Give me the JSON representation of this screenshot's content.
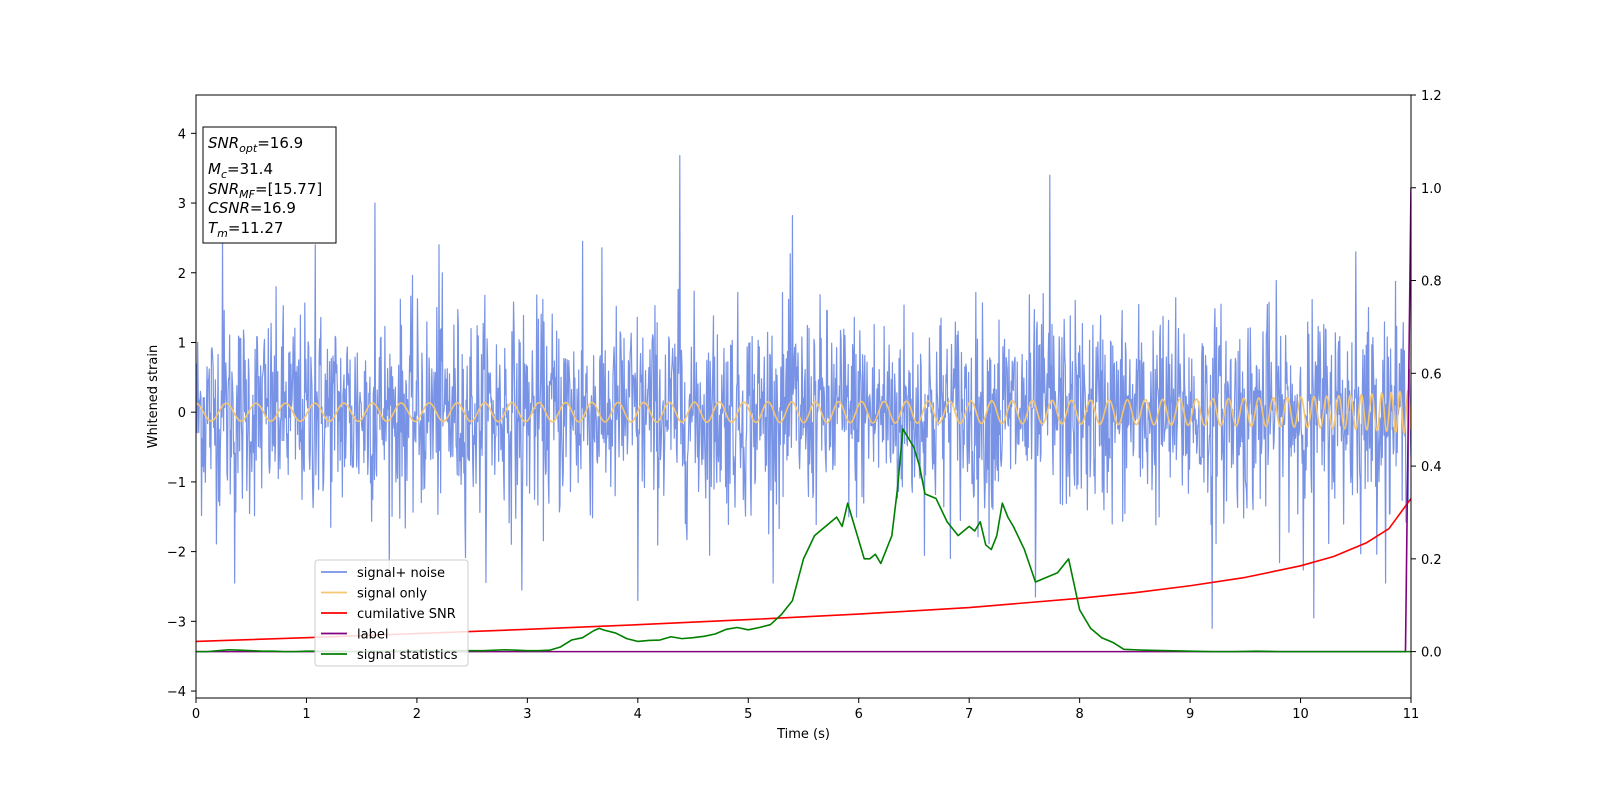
{
  "chart_data": {
    "type": "line",
    "xlabel": "Time (s)",
    "ylabel": "Whitened strain",
    "xlim": [
      0,
      11
    ],
    "ylim": [
      -4.1,
      4.55
    ],
    "y2lim": [
      -0.1,
      1.2
    ],
    "x_ticks": [
      0,
      1,
      2,
      3,
      4,
      5,
      6,
      7,
      8,
      9,
      10,
      11
    ],
    "y_ticks": [
      -4,
      -3,
      -2,
      -1,
      0,
      1,
      2,
      3,
      4
    ],
    "y_tick_labels": [
      "−4",
      "−3",
      "−2",
      "−1",
      "0",
      "1",
      "2",
      "3",
      "4"
    ],
    "y2_ticks": [
      0.0,
      0.2,
      0.4,
      0.6,
      0.8,
      1.0,
      1.2
    ],
    "y2_tick_labels": [
      "0.0",
      "0.2",
      "0.4",
      "0.6",
      "0.8",
      "1.0",
      "1.2"
    ],
    "legend_placement": "lower-left",
    "grid": false,
    "annotation": {
      "lines": [
        {
          "main": "SNR",
          "sub": "opt",
          "rest": "=16.9"
        },
        {
          "main": "M",
          "sub": "c",
          "rest": "=31.4"
        },
        {
          "main": "SNR",
          "sub": "MF",
          "rest": "=[15.77]"
        },
        {
          "main": "CSNR",
          "sub": "",
          "rest": "=16.9"
        },
        {
          "main": "T",
          "sub": "m",
          "rest": "=11.27"
        }
      ]
    },
    "series": [
      {
        "name": "signal+ noise",
        "color": "#7893e6",
        "axis": "left",
        "kind": "noise",
        "sigma": 0.72,
        "points_per_second": 200,
        "spikes": [
          {
            "x": 0.24,
            "y": 2.5
          },
          {
            "x": 1.08,
            "y": 2.4
          },
          {
            "x": 1.62,
            "y": 3.0
          },
          {
            "x": 2.2,
            "y": 2.4
          },
          {
            "x": 3.5,
            "y": 2.45
          },
          {
            "x": 4.38,
            "y": 3.68
          },
          {
            "x": 5.4,
            "y": 2.82
          },
          {
            "x": 7.73,
            "y": 3.4
          },
          {
            "x": 10.5,
            "y": 2.3
          },
          {
            "x": 4.0,
            "y": -2.7
          },
          {
            "x": 9.2,
            "y": -3.1
          },
          {
            "x": 10.12,
            "y": -2.95
          },
          {
            "x": 7.6,
            "y": -2.65
          },
          {
            "x": 0.35,
            "y": -2.45
          },
          {
            "x": 2.95,
            "y": -2.55
          }
        ]
      },
      {
        "name": "signal only",
        "color": "#f5c56f",
        "axis": "left",
        "kind": "chirp",
        "t_merge": 11.27,
        "amplitude_at_end": 0.32
      },
      {
        "name": "cumilative SNR",
        "color": "#ff0000",
        "axis": "right",
        "x": [
          0,
          1,
          2,
          3,
          4,
          5,
          6,
          7,
          8,
          8.5,
          9,
          9.5,
          10,
          10.3,
          10.6,
          10.8,
          11.0
        ],
        "y": [
          0.022,
          0.03,
          0.039,
          0.048,
          0.058,
          0.069,
          0.081,
          0.095,
          0.115,
          0.127,
          0.142,
          0.16,
          0.185,
          0.205,
          0.235,
          0.265,
          0.33
        ]
      },
      {
        "name": "label",
        "color": "#800080",
        "axis": "right",
        "x": [
          0,
          10.95,
          10.98,
          11.0
        ],
        "y": [
          0.0,
          0.0,
          0.6,
          1.0
        ]
      },
      {
        "name": "signal statistics",
        "color": "#008000",
        "axis": "right",
        "x": [
          0,
          0.1,
          0.2,
          0.3,
          0.4,
          0.5,
          0.6,
          0.7,
          0.8,
          0.9,
          1.0,
          1.2,
          1.4,
          1.6,
          1.8,
          2.0,
          2.2,
          2.4,
          2.6,
          2.8,
          2.9,
          3.0,
          3.1,
          3.2,
          3.3,
          3.4,
          3.5,
          3.6,
          3.65,
          3.7,
          3.8,
          3.9,
          4.0,
          4.1,
          4.2,
          4.3,
          4.4,
          4.5,
          4.6,
          4.7,
          4.8,
          4.9,
          5.0,
          5.1,
          5.2,
          5.3,
          5.4,
          5.5,
          5.6,
          5.7,
          5.8,
          5.85,
          5.9,
          5.95,
          6.0,
          6.05,
          6.1,
          6.15,
          6.2,
          6.25,
          6.3,
          6.35,
          6.4,
          6.45,
          6.5,
          6.55,
          6.6,
          6.7,
          6.8,
          6.9,
          7.0,
          7.05,
          7.1,
          7.15,
          7.2,
          7.25,
          7.3,
          7.35,
          7.4,
          7.5,
          7.6,
          7.7,
          7.8,
          7.9,
          8.0,
          8.1,
          8.2,
          8.3,
          8.4,
          8.5,
          8.6,
          8.8,
          9.0,
          9.2,
          9.4,
          9.6,
          9.8,
          10.0,
          10.2,
          10.4,
          10.6,
          10.8,
          11.0
        ],
        "y": [
          0.0,
          0.0,
          0.002,
          0.004,
          0.003,
          0.002,
          0.001,
          0.001,
          0.0,
          0.0,
          0.001,
          0.001,
          0.0,
          0.001,
          0.001,
          0.002,
          0.001,
          0.002,
          0.002,
          0.004,
          0.003,
          0.002,
          0.002,
          0.003,
          0.01,
          0.025,
          0.03,
          0.045,
          0.05,
          0.046,
          0.04,
          0.028,
          0.022,
          0.024,
          0.025,
          0.032,
          0.028,
          0.03,
          0.033,
          0.038,
          0.048,
          0.052,
          0.047,
          0.052,
          0.058,
          0.08,
          0.11,
          0.2,
          0.25,
          0.27,
          0.29,
          0.27,
          0.32,
          0.28,
          0.24,
          0.2,
          0.2,
          0.21,
          0.19,
          0.22,
          0.25,
          0.35,
          0.48,
          0.46,
          0.44,
          0.4,
          0.34,
          0.33,
          0.28,
          0.25,
          0.27,
          0.26,
          0.28,
          0.23,
          0.22,
          0.25,
          0.32,
          0.29,
          0.27,
          0.22,
          0.15,
          0.16,
          0.17,
          0.2,
          0.09,
          0.05,
          0.03,
          0.02,
          0.005,
          0.004,
          0.003,
          0.002,
          0.001,
          0.0,
          0.0,
          0.001,
          0.0,
          0.0,
          0.0,
          0.0,
          0.0,
          0.0,
          0.0
        ]
      }
    ]
  }
}
